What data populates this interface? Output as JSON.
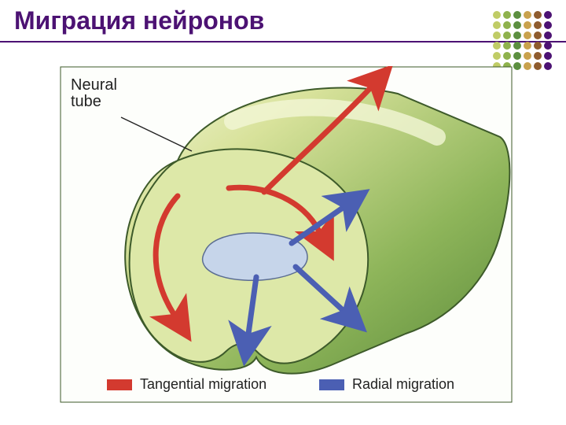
{
  "title": {
    "text": "Миграция нейронов",
    "color": "#4c1273",
    "fontsize": 32
  },
  "rule_color": "#4c1273",
  "dot_grid": {
    "cols": 6,
    "rows": 6,
    "colors": [
      "#c0cc66",
      "#8fb24d",
      "#5c8f40",
      "#c9a24d",
      "#8f5c2e",
      "#4c1273"
    ]
  },
  "figure": {
    "background": "#fdfefb",
    "border_color": "#3d5a2a",
    "labels": {
      "neural_tube": {
        "text": "Neural\ntube",
        "fontsize": 20,
        "color": "#222222"
      },
      "tangential": {
        "text": "Tangential migration",
        "fontsize": 18,
        "color": "#222222"
      },
      "radial": {
        "text": "Radial migration",
        "fontsize": 18,
        "color": "#222222"
      }
    },
    "legend": {
      "tangential_color": "#d33a2f",
      "radial_color": "#4b5fb3"
    },
    "tube": {
      "outer_light": "#d8e29b",
      "outer_dark": "#5b8a3a",
      "outer_highlight": "#f2f6d6",
      "outline": "#3d5a2a",
      "face_fill": "#dde8a8",
      "lumen_fill": "#c6d5ea",
      "lumen_outline": "#5b6d92"
    },
    "arrows": {
      "tangential_color": "#d33a2f",
      "radial_color": "#4b5fb3"
    }
  }
}
